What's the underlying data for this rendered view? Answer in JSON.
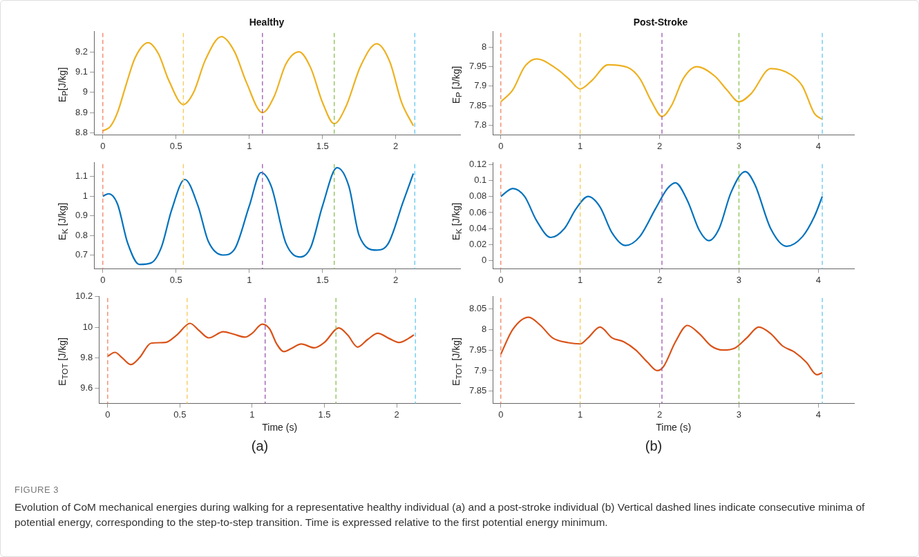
{
  "chart_data": [
    {
      "type": "line",
      "title": "Healthy",
      "ylabel": "E$_{P}$[J/kg]",
      "marker": "none",
      "grid": false,
      "legend": false,
      "xlim": [
        -0.06,
        2.44
      ],
      "xticks": [
        0,
        0.5,
        1,
        1.5,
        2
      ],
      "ylim": [
        8.79,
        9.3
      ],
      "yticks": [
        8.8,
        8.9,
        9,
        9.1,
        9.2
      ],
      "x": [
        0,
        0.05,
        0.1,
        0.16,
        0.22,
        0.31,
        0.38,
        0.45,
        0.55,
        0.62,
        0.7,
        0.81,
        0.9,
        0.98,
        1.09,
        1.17,
        1.25,
        1.34,
        1.42,
        1.5,
        1.58,
        1.66,
        1.76,
        1.87,
        1.96,
        2.04,
        2.12
      ],
      "series": [
        {
          "color": "#edb120",
          "values": [
            8.81,
            8.83,
            8.9,
            9.04,
            9.17,
            9.245,
            9.19,
            9.06,
            8.94,
            9.0,
            9.16,
            9.275,
            9.2,
            9.05,
            8.9,
            8.98,
            9.14,
            9.2,
            9.12,
            8.95,
            8.845,
            8.93,
            9.13,
            9.24,
            9.15,
            8.95,
            8.835
          ]
        }
      ],
      "ref_lines": [
        {
          "axis": "x",
          "value": 0,
          "color": "#f08060",
          "line_style": "dashed"
        },
        {
          "axis": "x",
          "value": 0.55,
          "color": "#f7c855",
          "line_style": "dashed"
        },
        {
          "axis": "x",
          "value": 1.09,
          "color": "#9a55b0",
          "line_style": "dashed"
        },
        {
          "axis": "x",
          "value": 1.58,
          "color": "#88c050",
          "line_style": "dashed"
        },
        {
          "axis": "x",
          "value": 2.13,
          "color": "#60c8f0",
          "line_style": "dashed"
        }
      ]
    },
    {
      "type": "line",
      "title": "Post-Stroke",
      "ylabel": "E$_{P}$ [J/kg]",
      "marker": "none",
      "grid": false,
      "legend": false,
      "xlim": [
        -0.1,
        4.45
      ],
      "xticks": [
        0,
        1,
        2,
        3,
        4
      ],
      "ylim": [
        7.775,
        8.04
      ],
      "yticks": [
        7.8,
        7.85,
        7.9,
        7.95,
        8
      ],
      "x": [
        0,
        0.15,
        0.3,
        0.45,
        0.7,
        0.85,
        1,
        1.15,
        1.35,
        1.6,
        1.75,
        1.9,
        2.03,
        2.15,
        2.3,
        2.47,
        2.7,
        2.85,
        3,
        3.15,
        3.4,
        3.65,
        3.8,
        3.95,
        4.05
      ],
      "series": [
        {
          "color": "#edb120",
          "values": [
            7.86,
            7.89,
            7.95,
            7.97,
            7.945,
            7.92,
            7.893,
            7.915,
            7.955,
            7.948,
            7.92,
            7.86,
            7.822,
            7.85,
            7.92,
            7.95,
            7.925,
            7.89,
            7.86,
            7.88,
            7.945,
            7.93,
            7.9,
            7.83,
            7.815
          ]
        }
      ],
      "ref_lines": [
        {
          "axis": "x",
          "value": 0,
          "color": "#f08060",
          "line_style": "dashed"
        },
        {
          "axis": "x",
          "value": 1,
          "color": "#f7c855",
          "line_style": "dashed"
        },
        {
          "axis": "x",
          "value": 2.03,
          "color": "#9a55b0",
          "line_style": "dashed"
        },
        {
          "axis": "x",
          "value": 3,
          "color": "#88c050",
          "line_style": "dashed"
        },
        {
          "axis": "x",
          "value": 4.05,
          "color": "#60c8f0",
          "line_style": "dashed"
        }
      ]
    },
    {
      "type": "line",
      "ylabel": "E$_{K}$ [J/kg]",
      "marker": "none",
      "grid": false,
      "legend": false,
      "xlim": [
        -0.06,
        2.44
      ],
      "xticks": [
        0,
        0.5,
        1,
        1.5,
        2
      ],
      "ylim": [
        0.63,
        1.17
      ],
      "yticks": [
        0.7,
        0.8,
        0.9,
        1,
        1.1
      ],
      "x": [
        0,
        0.04,
        0.1,
        0.17,
        0.25,
        0.33,
        0.4,
        0.47,
        0.56,
        0.65,
        0.72,
        0.82,
        0.9,
        1,
        1.08,
        1.15,
        1.25,
        1.35,
        1.42,
        1.5,
        1.6,
        1.68,
        1.75,
        1.87,
        1.95,
        2.05,
        2.12
      ],
      "series": [
        {
          "color": "#0072bd",
          "values": [
            1,
            1.012,
            0.96,
            0.76,
            0.652,
            0.66,
            0.74,
            0.93,
            1.085,
            0.95,
            0.77,
            0.7,
            0.73,
            0.95,
            1.12,
            1.05,
            0.76,
            0.69,
            0.74,
            0.95,
            1.145,
            1.05,
            0.8,
            0.725,
            0.76,
            0.97,
            1.115
          ]
        }
      ],
      "ref_lines": [
        {
          "axis": "x",
          "value": 0,
          "color": "#f08060",
          "line_style": "dashed"
        },
        {
          "axis": "x",
          "value": 0.55,
          "color": "#f7c855",
          "line_style": "dashed"
        },
        {
          "axis": "x",
          "value": 1.09,
          "color": "#9a55b0",
          "line_style": "dashed"
        },
        {
          "axis": "x",
          "value": 1.58,
          "color": "#88c050",
          "line_style": "dashed"
        },
        {
          "axis": "x",
          "value": 2.13,
          "color": "#60c8f0",
          "line_style": "dashed"
        }
      ]
    },
    {
      "type": "line",
      "ylabel": "E$_{K}$ [J/kg]",
      "marker": "none",
      "grid": false,
      "legend": false,
      "xlim": [
        -0.1,
        4.45
      ],
      "xticks": [
        0,
        1,
        2,
        3,
        4
      ],
      "ylim": [
        -0.01,
        0.122
      ],
      "yticks": [
        0,
        0.02,
        0.04,
        0.06,
        0.08,
        0.1,
        0.12
      ],
      "x": [
        0,
        0.15,
        0.3,
        0.45,
        0.63,
        0.8,
        0.95,
        1.1,
        1.25,
        1.4,
        1.57,
        1.75,
        1.95,
        2.1,
        2.2,
        2.35,
        2.5,
        2.62,
        2.75,
        2.9,
        3.08,
        3.2,
        3.4,
        3.6,
        3.8,
        3.95,
        4.05
      ],
      "series": [
        {
          "color": "#0072bd",
          "values": [
            0.08,
            0.09,
            0.08,
            0.05,
            0.029,
            0.04,
            0.065,
            0.08,
            0.067,
            0.035,
            0.019,
            0.03,
            0.065,
            0.09,
            0.097,
            0.075,
            0.038,
            0.025,
            0.04,
            0.085,
            0.111,
            0.095,
            0.04,
            0.018,
            0.03,
            0.055,
            0.08
          ]
        }
      ],
      "ref_lines": [
        {
          "axis": "x",
          "value": 0,
          "color": "#f08060",
          "line_style": "dashed"
        },
        {
          "axis": "x",
          "value": 1,
          "color": "#f7c855",
          "line_style": "dashed"
        },
        {
          "axis": "x",
          "value": 2.03,
          "color": "#9a55b0",
          "line_style": "dashed"
        },
        {
          "axis": "x",
          "value": 3,
          "color": "#88c050",
          "line_style": "dashed"
        },
        {
          "axis": "x",
          "value": 4.05,
          "color": "#60c8f0",
          "line_style": "dashed"
        }
      ]
    },
    {
      "type": "line",
      "xlabel": "Time (s)",
      "ylabel": "E$_{TOT}$ [J/kg]",
      "marker": "none",
      "grid": false,
      "legend": false,
      "xlim": [
        -0.06,
        2.44
      ],
      "xticks": [
        0,
        0.5,
        1,
        1.5,
        2
      ],
      "ylim": [
        9.5,
        10.2
      ],
      "yticks": [
        9.6,
        9.8,
        10,
        10.2
      ],
      "x": [
        0,
        0.05,
        0.1,
        0.16,
        0.22,
        0.3,
        0.4,
        0.48,
        0.57,
        0.63,
        0.7,
        0.8,
        0.87,
        0.95,
        1,
        1.07,
        1.12,
        1.17,
        1.22,
        1.27,
        1.34,
        1.43,
        1.5,
        1.6,
        1.66,
        1.73,
        1.8,
        1.87,
        1.95,
        2.02,
        2.08,
        2.12
      ],
      "series": [
        {
          "color": "#d95319",
          "values": [
            9.81,
            9.835,
            9.8,
            9.755,
            9.8,
            9.895,
            9.9,
            9.95,
            10.025,
            9.98,
            9.93,
            9.97,
            9.955,
            9.935,
            9.96,
            10.02,
            9.99,
            9.89,
            9.84,
            9.86,
            9.89,
            9.865,
            9.9,
            9.995,
            9.95,
            9.87,
            9.92,
            9.96,
            9.925,
            9.9,
            9.925,
            9.95
          ]
        }
      ],
      "ref_lines": [
        {
          "axis": "x",
          "value": 0,
          "color": "#f08060",
          "line_style": "dashed"
        },
        {
          "axis": "x",
          "value": 0.55,
          "color": "#f7c855",
          "line_style": "dashed"
        },
        {
          "axis": "x",
          "value": 1.09,
          "color": "#9a55b0",
          "line_style": "dashed"
        },
        {
          "axis": "x",
          "value": 1.58,
          "color": "#88c050",
          "line_style": "dashed"
        },
        {
          "axis": "x",
          "value": 2.13,
          "color": "#60c8f0",
          "line_style": "dashed"
        }
      ],
      "annotations": [
        "(a)"
      ]
    },
    {
      "type": "line",
      "xlabel": "Time (s)",
      "ylabel": "E$_{TOT}$ [J/kg]",
      "marker": "none",
      "grid": false,
      "legend": false,
      "xlim": [
        -0.1,
        4.45
      ],
      "xticks": [
        0,
        1,
        2,
        3,
        4
      ],
      "ylim": [
        7.82,
        8.08
      ],
      "yticks": [
        7.85,
        7.9,
        7.95,
        8,
        8.05
      ],
      "x": [
        0,
        0.15,
        0.35,
        0.5,
        0.65,
        0.85,
        1,
        1.1,
        1.25,
        1.4,
        1.55,
        1.7,
        1.85,
        1.97,
        2.05,
        2.2,
        2.35,
        2.5,
        2.65,
        2.8,
        2.95,
        3.1,
        3.25,
        3.4,
        3.55,
        3.7,
        3.85,
        3.98,
        4.05
      ],
      "series": [
        {
          "color": "#d95319",
          "values": [
            7.94,
            8,
            8.03,
            8.01,
            7.98,
            7.968,
            7.965,
            7.98,
            8.006,
            7.98,
            7.97,
            7.95,
            7.92,
            7.9,
            7.91,
            7.97,
            8.01,
            7.99,
            7.96,
            7.95,
            7.955,
            7.98,
            8.006,
            7.99,
            7.96,
            7.945,
            7.92,
            7.89,
            7.895
          ]
        }
      ],
      "ref_lines": [
        {
          "axis": "x",
          "value": 0,
          "color": "#f08060",
          "line_style": "dashed"
        },
        {
          "axis": "x",
          "value": 1,
          "color": "#f7c855",
          "line_style": "dashed"
        },
        {
          "axis": "x",
          "value": 2.03,
          "color": "#9a55b0",
          "line_style": "dashed"
        },
        {
          "axis": "x",
          "value": 3,
          "color": "#88c050",
          "line_style": "dashed"
        },
        {
          "axis": "x",
          "value": 4.05,
          "color": "#60c8f0",
          "line_style": "dashed"
        }
      ],
      "annotations": [
        "(b)",
        "FIGURE 3",
        "Evolution of CoM mechanical energies during walking for a representative healthy individual (a) and a post-stroke individual (b) Vertical dashed lines indicate consecutive minima of potential energy, corresponding to the step-to-step transition. Time is expressed relative to the first potential energy minimum."
      ]
    }
  ]
}
